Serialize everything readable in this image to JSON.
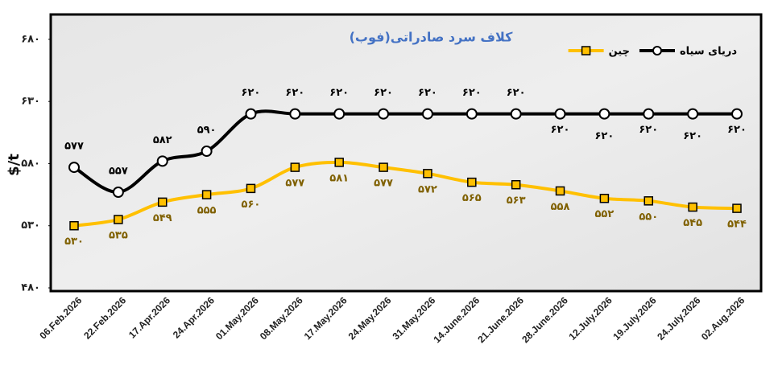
{
  "chart_data": {
    "type": "line",
    "title": "کلاف سرد صادراتی(فوب)",
    "ylabel": "$/t",
    "categories": [
      "06.Feb.2026",
      "22.Feb.2026",
      "17.Apr.2026",
      "24.Apr.2026",
      "01.May.2026",
      "08.May.2026",
      "17.May.2026",
      "24.May.2026",
      "31.May.2026",
      "14.June.2026",
      "21.June.2026",
      "28.June.2026",
      "12.July.2026",
      "19.July.2026",
      "24.July.2026",
      "02.Aug.2026"
    ],
    "series": [
      {
        "name": "دریای سیاه",
        "color": "#000000",
        "marker": "circle",
        "values": [
          577,
          557,
          582,
          590,
          620,
          620,
          620,
          620,
          620,
          620,
          620,
          620,
          620,
          620,
          620,
          620
        ],
        "value_labels": [
          "۵۷۷",
          "۵۵۷",
          "۵۸۲",
          "۵۹۰",
          "۶۲۰",
          "۶۲۰",
          "۶۲۰",
          "۶۲۰",
          "۶۲۰",
          "۶۲۰",
          "۶۲۰",
          "۶۲۰",
          "۶۲۰",
          "۶۲۰",
          "۶۲۰",
          "۶۲۰"
        ]
      },
      {
        "name": "چین",
        "color": "#ffc000",
        "marker": "square",
        "values": [
          530,
          535,
          549,
          555,
          560,
          577,
          581,
          577,
          572,
          565,
          563,
          558,
          552,
          550,
          545,
          544
        ],
        "value_labels": [
          "۵۳۰",
          "۵۳۵",
          "۵۴۹",
          "۵۵۵",
          "۵۶۰",
          "۵۷۷",
          "۵۸۱",
          "۵۷۷",
          "۵۷۲",
          "۵۶۵",
          "۵۶۳",
          "۵۵۸",
          "۵۵۲",
          "۵۵۰",
          "۵۴۵",
          "۵۴۴"
        ]
      }
    ],
    "ylim": [
      480,
      700
    ],
    "yticks": [
      {
        "value": 480,
        "label": "۴۸۰"
      },
      {
        "value": 530,
        "label": "۵۳۰"
      },
      {
        "value": 580,
        "label": "۵۸۰"
      },
      {
        "value": 630,
        "label": "۶۳۰"
      },
      {
        "value": 680,
        "label": "۶۸۰"
      }
    ],
    "legend": "upper right",
    "smooth": true
  }
}
